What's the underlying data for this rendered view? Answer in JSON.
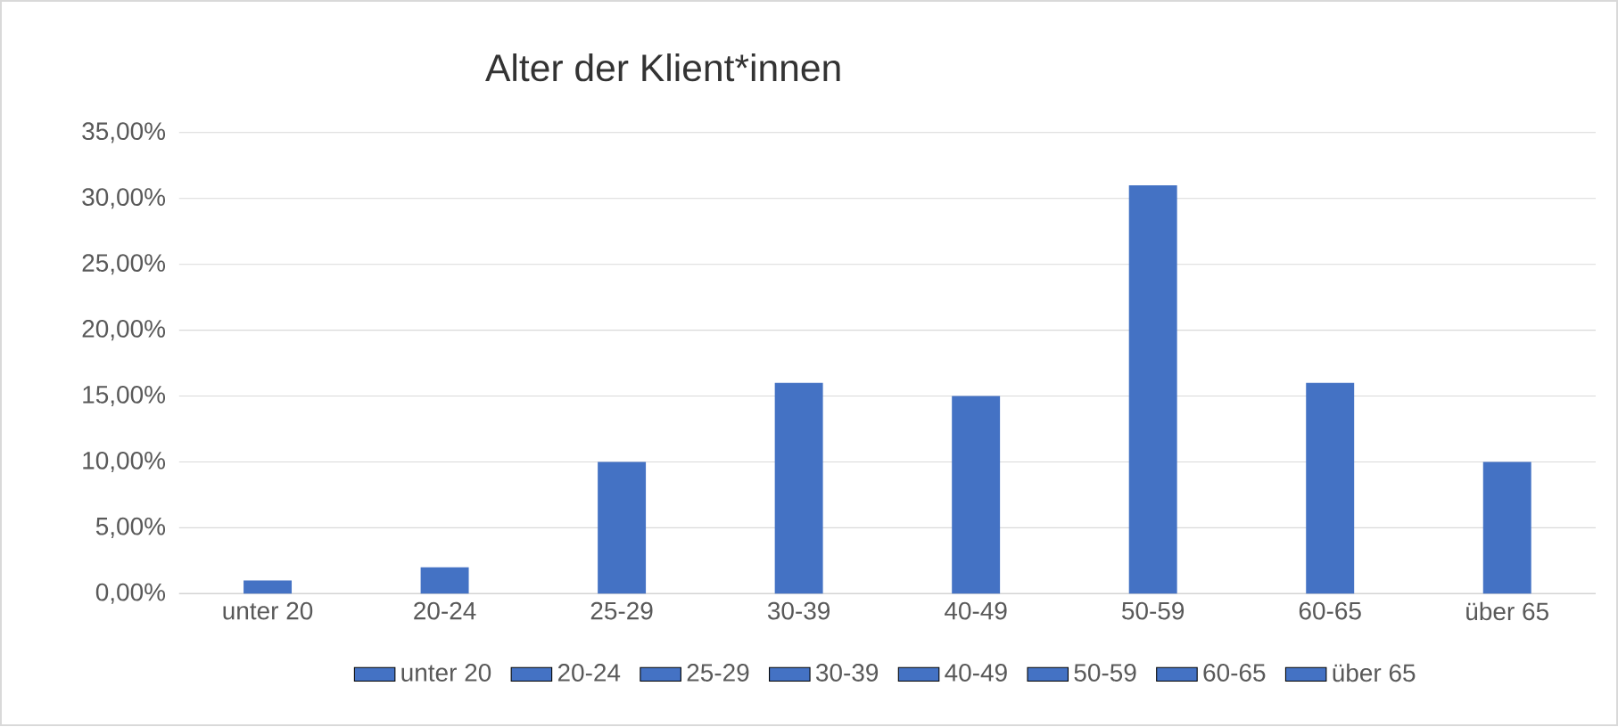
{
  "chart_data": {
    "type": "bar",
    "title": "Alter der Klient*innen",
    "categories": [
      "unter 20",
      "20-24",
      "25-29",
      "30-39",
      "40-49",
      "50-59",
      "60-65",
      "über 65"
    ],
    "series": [
      {
        "name": "unter 20",
        "color": "#4472c4",
        "values": [
          1,
          null,
          null,
          null,
          null,
          null,
          null,
          null
        ]
      },
      {
        "name": "20-24",
        "color": "#4472c4",
        "values": [
          null,
          2,
          null,
          null,
          null,
          null,
          null,
          null
        ]
      },
      {
        "name": "25-29",
        "color": "#4472c4",
        "values": [
          null,
          null,
          10,
          null,
          null,
          null,
          null,
          null
        ]
      },
      {
        "name": "30-39",
        "color": "#4472c4",
        "values": [
          null,
          null,
          null,
          16,
          null,
          null,
          null,
          null
        ]
      },
      {
        "name": "40-49",
        "color": "#4472c4",
        "values": [
          null,
          null,
          null,
          null,
          15,
          null,
          null,
          null
        ]
      },
      {
        "name": "50-59",
        "color": "#4472c4",
        "values": [
          null,
          null,
          null,
          null,
          null,
          31,
          null,
          null
        ]
      },
      {
        "name": "60-65",
        "color": "#4472c4",
        "values": [
          null,
          null,
          null,
          null,
          null,
          null,
          16,
          null
        ]
      },
      {
        "name": "über 65",
        "color": "#4472c4",
        "values": [
          null,
          null,
          null,
          null,
          null,
          null,
          null,
          10
        ]
      }
    ],
    "ylim": [
      0,
      35
    ],
    "yticks": [
      {
        "value": 0,
        "label": "0,00%"
      },
      {
        "value": 5,
        "label": "5,00%"
      },
      {
        "value": 10,
        "label": "10,00%"
      },
      {
        "value": 15,
        "label": "15,00%"
      },
      {
        "value": 20,
        "label": "20,00%"
      },
      {
        "value": 25,
        "label": "25,00%"
      },
      {
        "value": 30,
        "label": "30,00%"
      },
      {
        "value": 35,
        "label": "35,00%"
      }
    ],
    "grid": "y",
    "legend": "bottom"
  }
}
